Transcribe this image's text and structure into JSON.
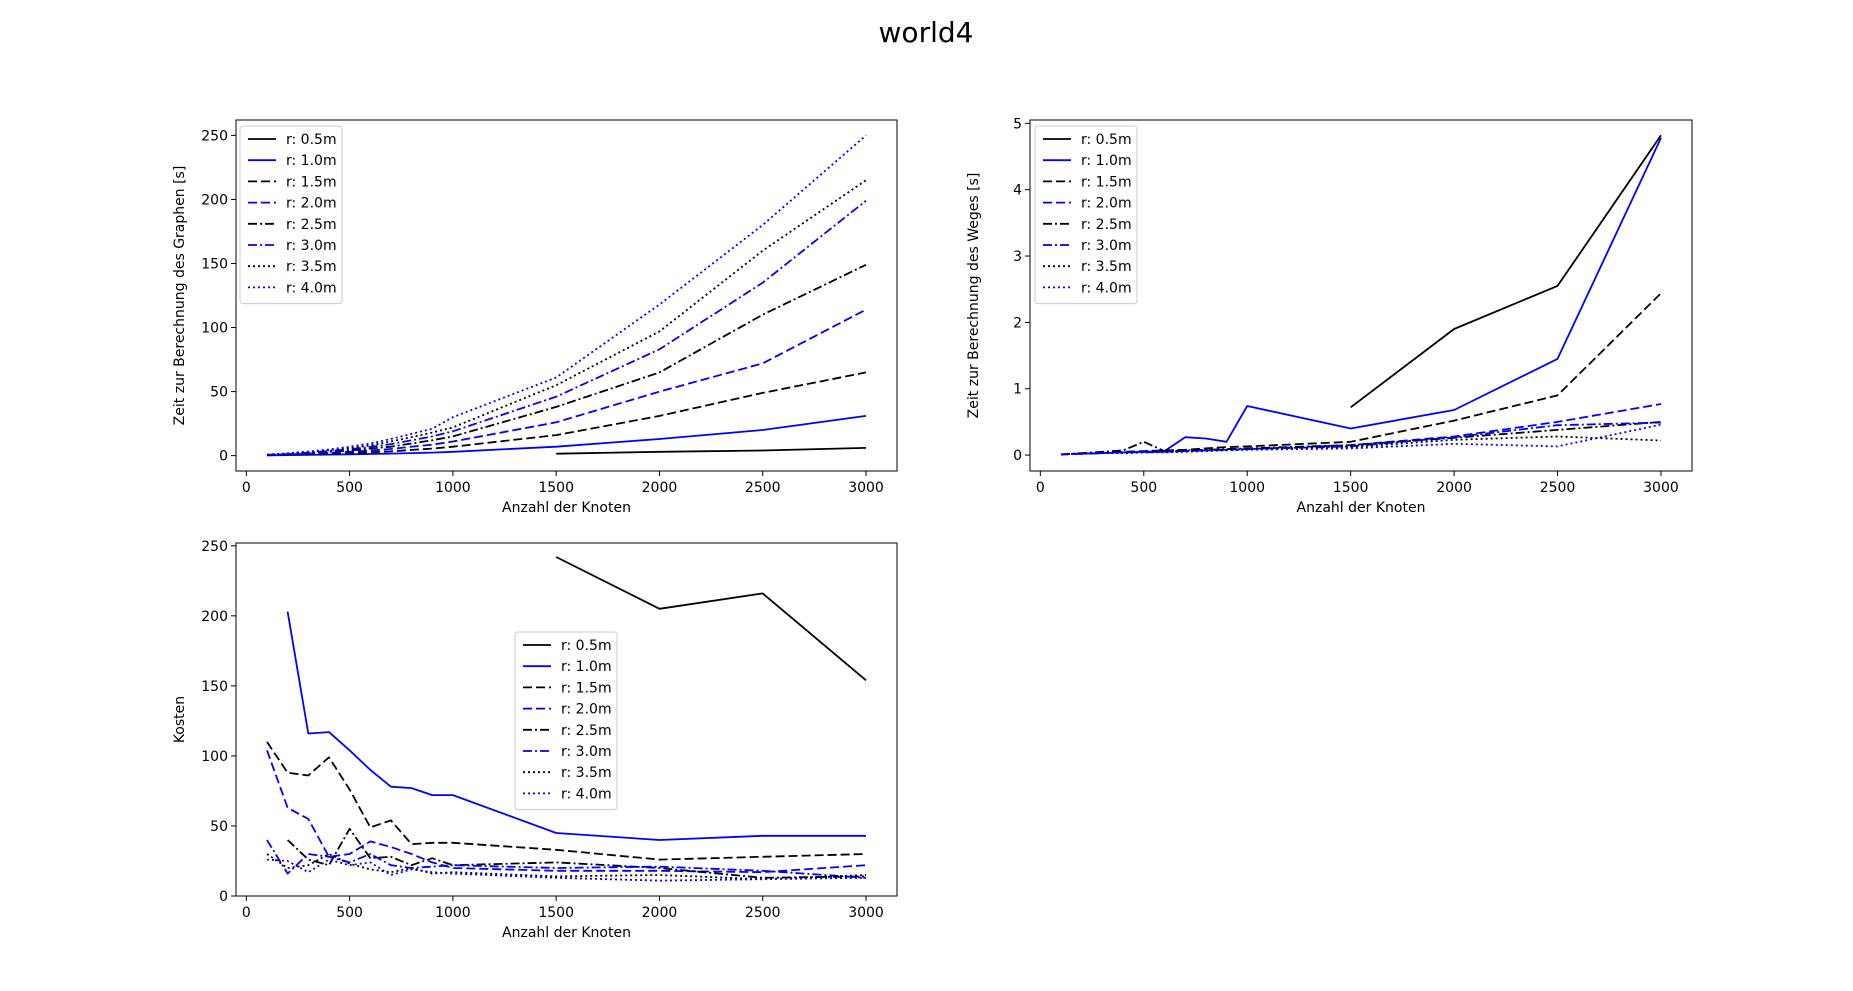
{
  "figure_title": "world4",
  "legend_labels": [
    "r: 0.5m",
    "r: 1.0m",
    "r: 1.5m",
    "r: 2.0m",
    "r: 2.5m",
    "r: 3.0m",
    "r: 3.5m",
    "r: 4.0m"
  ],
  "series_styles": [
    {
      "color": "#000000",
      "dash": "solid"
    },
    {
      "color": "#0000ff",
      "dash": "solid"
    },
    {
      "color": "#000000",
      "dash": "dashed"
    },
    {
      "color": "#0000ff",
      "dash": "dashed"
    },
    {
      "color": "#000000",
      "dash": "dashdot"
    },
    {
      "color": "#0000ff",
      "dash": "dashdot"
    },
    {
      "color": "#000000",
      "dash": "dotted"
    },
    {
      "color": "#0000ff",
      "dash": "dotted"
    }
  ],
  "chart_data": [
    {
      "type": "line",
      "title": "",
      "xlabel": "Anzahl der Knoten",
      "ylabel": "Zeit zur Berechnung des Graphen [s]",
      "xlim": [
        -50,
        3150
      ],
      "ylim": [
        -12,
        262
      ],
      "xticks": [
        0,
        500,
        1000,
        1500,
        2000,
        2500,
        3000
      ],
      "yticks": [
        0,
        50,
        100,
        150,
        200,
        250
      ],
      "legend_position": "upper left",
      "series": [
        {
          "name": "r: 0.5m",
          "x": [
            1500,
            2000,
            2500,
            3000
          ],
          "y": [
            1.5,
            3,
            4,
            6
          ]
        },
        {
          "name": "r: 1.0m",
          "x": [
            100,
            200,
            300,
            400,
            500,
            600,
            700,
            800,
            900,
            1000,
            1500,
            2000,
            2500,
            3000
          ],
          "y": [
            0.2,
            0.4,
            0.6,
            0.8,
            1,
            1.3,
            1.6,
            2,
            2.4,
            3,
            7,
            13,
            20,
            31
          ]
        },
        {
          "name": "r: 1.5m",
          "x": [
            100,
            200,
            300,
            400,
            500,
            600,
            700,
            800,
            900,
            1000,
            1500,
            2000,
            2500,
            3000
          ],
          "y": [
            0.3,
            0.6,
            1,
            1.5,
            2,
            2.6,
            3.3,
            4.5,
            5.5,
            7,
            16,
            31,
            49,
            65
          ]
        },
        {
          "name": "r: 2.0m",
          "x": [
            100,
            200,
            300,
            400,
            500,
            600,
            700,
            800,
            900,
            1000,
            1500,
            2000,
            2500,
            3000
          ],
          "y": [
            0.4,
            0.9,
            1.5,
            2.2,
            3,
            4,
            5.2,
            7,
            8.5,
            11,
            26,
            50,
            72,
            114
          ]
        },
        {
          "name": "r: 2.5m",
          "x": [
            100,
            200,
            300,
            400,
            500,
            600,
            700,
            800,
            900,
            1000,
            1500,
            2000,
            2500,
            3000
          ],
          "y": [
            0.5,
            1.1,
            2,
            3,
            4,
            5.5,
            7,
            9.5,
            12,
            15,
            38,
            65,
            110,
            149
          ]
        },
        {
          "name": "r: 3.0m",
          "x": [
            100,
            200,
            300,
            400,
            500,
            600,
            700,
            800,
            900,
            1000,
            1500,
            2000,
            2500,
            3000
          ],
          "y": [
            0.6,
            1.3,
            2.4,
            3.6,
            5,
            6.8,
            9,
            12,
            15,
            19,
            46,
            83,
            135,
            199
          ]
        },
        {
          "name": "r: 3.5m",
          "x": [
            100,
            200,
            300,
            400,
            500,
            600,
            700,
            800,
            900,
            1000,
            1500,
            2000,
            2500,
            3000
          ],
          "y": [
            0.7,
            1.5,
            2.8,
            4.2,
            6,
            8,
            11,
            14.5,
            18,
            22,
            55,
            97,
            160,
            215
          ]
        },
        {
          "name": "r: 4.0m",
          "x": [
            100,
            200,
            300,
            400,
            500,
            600,
            700,
            800,
            900,
            1000,
            1500,
            2000,
            2500,
            3000
          ],
          "y": [
            0.8,
            1.8,
            3.2,
            4.8,
            7,
            9.5,
            13,
            17,
            21,
            30,
            61,
            118,
            180,
            250
          ]
        }
      ]
    },
    {
      "type": "line",
      "title": "",
      "xlabel": "Anzahl der Knoten",
      "ylabel": "Zeit zur Berechnung des Weges [s]",
      "xlim": [
        -50,
        3150
      ],
      "ylim": [
        -0.24,
        5.05
      ],
      "xticks": [
        0,
        500,
        1000,
        1500,
        2000,
        2500,
        3000
      ],
      "yticks": [
        0,
        1,
        2,
        3,
        4,
        5
      ],
      "legend_position": "upper left",
      "series": [
        {
          "name": "r: 0.5m",
          "x": [
            1500,
            2000,
            2500,
            3000
          ],
          "y": [
            0.72,
            1.9,
            2.55,
            4.82
          ]
        },
        {
          "name": "r: 1.0m",
          "x": [
            200,
            300,
            400,
            500,
            600,
            700,
            800,
            900,
            1000,
            1500,
            2000,
            2500,
            3000
          ],
          "y": [
            0.02,
            0.03,
            0.04,
            0.05,
            0.06,
            0.27,
            0.25,
            0.2,
            0.74,
            0.4,
            0.68,
            1.45,
            4.78
          ]
        },
        {
          "name": "r: 1.5m",
          "x": [
            100,
            200,
            300,
            400,
            500,
            600,
            700,
            800,
            900,
            1000,
            1500,
            2000,
            2500,
            3000
          ],
          "y": [
            0.01,
            0.02,
            0.03,
            0.05,
            0.06,
            0.07,
            0.08,
            0.1,
            0.12,
            0.13,
            0.2,
            0.52,
            0.9,
            2.44
          ]
        },
        {
          "name": "r: 2.0m",
          "x": [
            100,
            200,
            300,
            400,
            500,
            600,
            700,
            800,
            900,
            1000,
            1500,
            2000,
            2500,
            3000
          ],
          "y": [
            0.01,
            0.02,
            0.03,
            0.04,
            0.05,
            0.05,
            0.06,
            0.07,
            0.08,
            0.09,
            0.15,
            0.28,
            0.5,
            0.77
          ]
        },
        {
          "name": "r: 2.5m",
          "x": [
            100,
            200,
            300,
            400,
            500,
            600,
            700,
            800,
            900,
            1000,
            1500,
            2000,
            2500,
            3000
          ],
          "y": [
            0.01,
            0.03,
            0.05,
            0.07,
            0.2,
            0.06,
            0.07,
            0.08,
            0.09,
            0.1,
            0.15,
            0.26,
            0.38,
            0.5
          ]
        },
        {
          "name": "r: 3.0m",
          "x": [
            100,
            200,
            300,
            400,
            500,
            600,
            700,
            800,
            900,
            1000,
            1500,
            2000,
            2500,
            3000
          ],
          "y": [
            0.01,
            0.02,
            0.03,
            0.04,
            0.04,
            0.05,
            0.06,
            0.07,
            0.08,
            0.09,
            0.13,
            0.27,
            0.45,
            0.49
          ]
        },
        {
          "name": "r: 3.5m",
          "x": [
            100,
            200,
            300,
            400,
            500,
            600,
            700,
            800,
            900,
            1000,
            1500,
            2000,
            2500,
            3000
          ],
          "y": [
            0.01,
            0.02,
            0.03,
            0.03,
            0.04,
            0.05,
            0.06,
            0.07,
            0.08,
            0.09,
            0.12,
            0.23,
            0.28,
            0.22
          ]
        },
        {
          "name": "r: 4.0m",
          "x": [
            100,
            200,
            300,
            400,
            500,
            600,
            700,
            800,
            900,
            1000,
            1500,
            2000,
            2500,
            3000
          ],
          "y": [
            0.01,
            0.02,
            0.03,
            0.03,
            0.04,
            0.04,
            0.05,
            0.06,
            0.07,
            0.08,
            0.1,
            0.17,
            0.13,
            0.46
          ]
        }
      ]
    },
    {
      "type": "line",
      "title": "",
      "xlabel": "Anzahl der Knoten",
      "ylabel": "Kosten",
      "xlim": [
        -50,
        3150
      ],
      "ylim": [
        0,
        252
      ],
      "xticks": [
        0,
        500,
        1000,
        1500,
        2000,
        2500,
        3000
      ],
      "yticks": [
        0,
        50,
        100,
        150,
        200,
        250
      ],
      "legend_position": "center",
      "series": [
        {
          "name": "r: 0.5m",
          "x": [
            1500,
            2000,
            2500,
            3000
          ],
          "y": [
            242,
            205,
            216,
            154
          ]
        },
        {
          "name": "r: 1.0m",
          "x": [
            200,
            300,
            400,
            500,
            600,
            700,
            800,
            900,
            1000,
            1500,
            2000,
            2500,
            3000
          ],
          "y": [
            203,
            116,
            117,
            104,
            90,
            78,
            77,
            72,
            72,
            45,
            40,
            43,
            43
          ]
        },
        {
          "name": "r: 1.5m",
          "x": [
            100,
            200,
            300,
            400,
            500,
            600,
            700,
            800,
            900,
            1000,
            1500,
            2000,
            2500,
            3000
          ],
          "y": [
            110,
            88,
            86,
            99,
            76,
            49,
            54,
            37,
            38,
            38,
            33,
            26,
            28,
            30
          ]
        },
        {
          "name": "r: 2.0m",
          "x": [
            100,
            200,
            300,
            400,
            500,
            600,
            700,
            800,
            900,
            1000,
            1500,
            2000,
            2500,
            3000
          ],
          "y": [
            104,
            63,
            55,
            28,
            30,
            39,
            35,
            30,
            24,
            20,
            18,
            18,
            17,
            22
          ]
        },
        {
          "name": "r: 2.5m",
          "x": [
            200,
            300,
            400,
            500,
            600,
            700,
            800,
            900,
            1000,
            1500,
            2000,
            2500,
            3000
          ],
          "y": [
            40,
            26,
            22,
            48,
            27,
            28,
            22,
            27,
            22,
            24,
            20,
            13,
            14
          ]
        },
        {
          "name": "r: 3.0m",
          "x": [
            100,
            200,
            300,
            400,
            500,
            600,
            700,
            800,
            900,
            1000,
            1500,
            2000,
            2500,
            3000
          ],
          "y": [
            40,
            16,
            30,
            28,
            24,
            30,
            22,
            20,
            21,
            22,
            20,
            21,
            18,
            13
          ]
        },
        {
          "name": "r: 3.5m",
          "x": [
            100,
            200,
            300,
            400,
            500,
            600,
            700,
            800,
            900,
            1000,
            1500,
            2000,
            2500,
            3000
          ],
          "y": [
            30,
            20,
            22,
            30,
            23,
            19,
            17,
            20,
            16,
            17,
            14,
            15,
            12,
            15
          ]
        },
        {
          "name": "r: 4.0m",
          "x": [
            100,
            200,
            300,
            400,
            500,
            600,
            700,
            800,
            900,
            1000,
            1500,
            2000,
            2500,
            3000
          ],
          "y": [
            26,
            25,
            17,
            26,
            22,
            24,
            15,
            19,
            17,
            16,
            13,
            11,
            12,
            13
          ]
        }
      ]
    }
  ]
}
